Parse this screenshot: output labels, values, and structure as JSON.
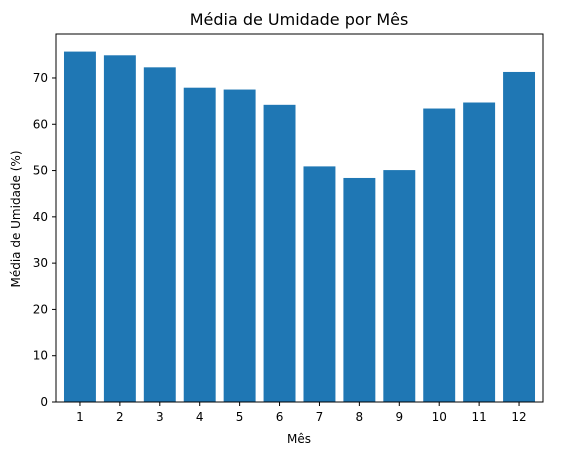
{
  "chart_data": {
    "type": "bar",
    "title": "Média de Umidade por Mês",
    "xlabel": "Mês",
    "ylabel": "Média de Umidade (%)",
    "categories": [
      "1",
      "2",
      "3",
      "4",
      "5",
      "6",
      "7",
      "8",
      "9",
      "10",
      "11",
      "12"
    ],
    "values": [
      75.7,
      74.9,
      72.3,
      67.9,
      67.5,
      64.2,
      50.9,
      48.4,
      50.1,
      63.4,
      64.7,
      71.3
    ],
    "ylim": [
      0,
      79.5
    ],
    "yticks": [
      0,
      10,
      20,
      30,
      40,
      50,
      60,
      70
    ],
    "bar_color": "#1f77b4",
    "grid": false,
    "legend": "none"
  }
}
